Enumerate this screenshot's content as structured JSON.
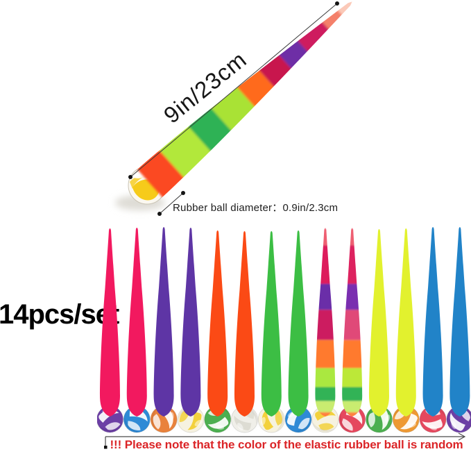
{
  "hero": {
    "length_label": "9in/23cm",
    "ball_note": "Rubber ball diameter：0.9in/2.3cm",
    "worm_stripes": [
      {
        "from": 0,
        "to": 42,
        "color": "#FB4A22"
      },
      {
        "from": 42,
        "to": 96,
        "color": "#B2E83A"
      },
      {
        "from": 96,
        "to": 138,
        "color": "#2DB254"
      },
      {
        "from": 138,
        "to": 186,
        "color": "#A9E236"
      },
      {
        "from": 186,
        "to": 226,
        "color": "#FF6A1E"
      },
      {
        "from": 226,
        "to": 262,
        "color": "#C8164E"
      },
      {
        "from": 262,
        "to": 296,
        "color": "#6E2FA6"
      },
      {
        "from": 296,
        "to": 340,
        "color": "#CE1F5E"
      },
      {
        "from": 340,
        "to": 368,
        "color": "#F4806B"
      },
      {
        "from": 368,
        "to": 392,
        "color": "#FBC9B8"
      }
    ],
    "ball": {
      "base": "#FBF8F0",
      "patch": "#F6CB1A",
      "rim": "#C9C3B4"
    }
  },
  "set": {
    "label": "14pcs/set",
    "worms": [
      {
        "name": "pink",
        "fluff": "#F2195F",
        "ball": {
          "base": "#6C3FA5",
          "band": "#FFFFFF"
        }
      },
      {
        "name": "pink",
        "fluff": "#F2195F",
        "ball": {
          "base": "#2F8AD6",
          "band": "#FFFFFF"
        }
      },
      {
        "name": "purple",
        "fluff": "#5E35A5",
        "ball": {
          "base": "#E9823C",
          "band": "#FFFFFF"
        }
      },
      {
        "name": "purple",
        "fluff": "#5E35A5",
        "ball": {
          "base": "#F6F2E0",
          "band": "#F2CE2E"
        }
      },
      {
        "name": "orange",
        "fluff": "#FB4A15",
        "ball": {
          "base": "#4CAF50",
          "band": "#FFFFFF"
        }
      },
      {
        "name": "orange",
        "fluff": "#FB4A15",
        "ball": {
          "base": "#F0EFE9",
          "band": "#DBDAD0"
        }
      },
      {
        "name": "green",
        "fluff": "#3CBE44",
        "ball": {
          "base": "#F6F2E0",
          "band": "#F2CE2E"
        }
      },
      {
        "name": "green",
        "fluff": "#3CBE44",
        "ball": {
          "base": "#2F8AD6",
          "band": "#FFFFFF"
        }
      },
      {
        "name": "rainbow",
        "stripes": [
          {
            "from": 6,
            "to": 30,
            "color": "#EE5E72"
          },
          {
            "from": 30,
            "to": 85,
            "color": "#DD1F5C"
          },
          {
            "from": 85,
            "to": 122,
            "color": "#6B2FA8"
          },
          {
            "from": 122,
            "to": 165,
            "color": "#CC1E60"
          },
          {
            "from": 165,
            "to": 205,
            "color": "#FF7A2E"
          },
          {
            "from": 205,
            "to": 232,
            "color": "#AAE840"
          },
          {
            "from": 232,
            "to": 252,
            "color": "#33B357"
          },
          {
            "from": 252,
            "to": 268,
            "color": "#C9EC70"
          },
          {
            "from": 268,
            "to": 278,
            "color": "#FF8040"
          }
        ],
        "ball": {
          "base": "#F6F2E0",
          "band": "#F2CE2E"
        }
      },
      {
        "name": "rainbow",
        "stripes": [
          {
            "from": 6,
            "to": 30,
            "color": "#EE5E72"
          },
          {
            "from": 30,
            "to": 85,
            "color": "#DD215E"
          },
          {
            "from": 85,
            "to": 122,
            "color": "#7A2FB0"
          },
          {
            "from": 122,
            "to": 165,
            "color": "#E04878"
          },
          {
            "from": 165,
            "to": 205,
            "color": "#FF7A2E"
          },
          {
            "from": 205,
            "to": 232,
            "color": "#BCE838"
          },
          {
            "from": 232,
            "to": 252,
            "color": "#33B357"
          },
          {
            "from": 252,
            "to": 268,
            "color": "#C9EC70"
          },
          {
            "from": 268,
            "to": 278,
            "color": "#FF8040"
          }
        ],
        "ball": {
          "base": "#E5485E",
          "band": "#FFFFFF"
        }
      },
      {
        "name": "yellow",
        "fluff": "#E2F12E",
        "ball": {
          "base": "#4CAF50",
          "band": "#FFFFFF"
        }
      },
      {
        "name": "yellow",
        "fluff": "#E2F12E",
        "ball": {
          "base": "#EE9933",
          "band": "#FFFFFF"
        }
      },
      {
        "name": "blue",
        "fluff": "#2183C8",
        "ball": {
          "base": "#E5485E",
          "band": "#FFFFFF"
        }
      },
      {
        "name": "blue",
        "fluff": "#2183C8",
        "ball": {
          "base": "#6C3FA5",
          "band": "#FFFFFF"
        }
      }
    ]
  },
  "footnote": {
    "text": "!!! Please note that the color of the elastic rubber ball is random",
    "color": "#DB2427"
  }
}
